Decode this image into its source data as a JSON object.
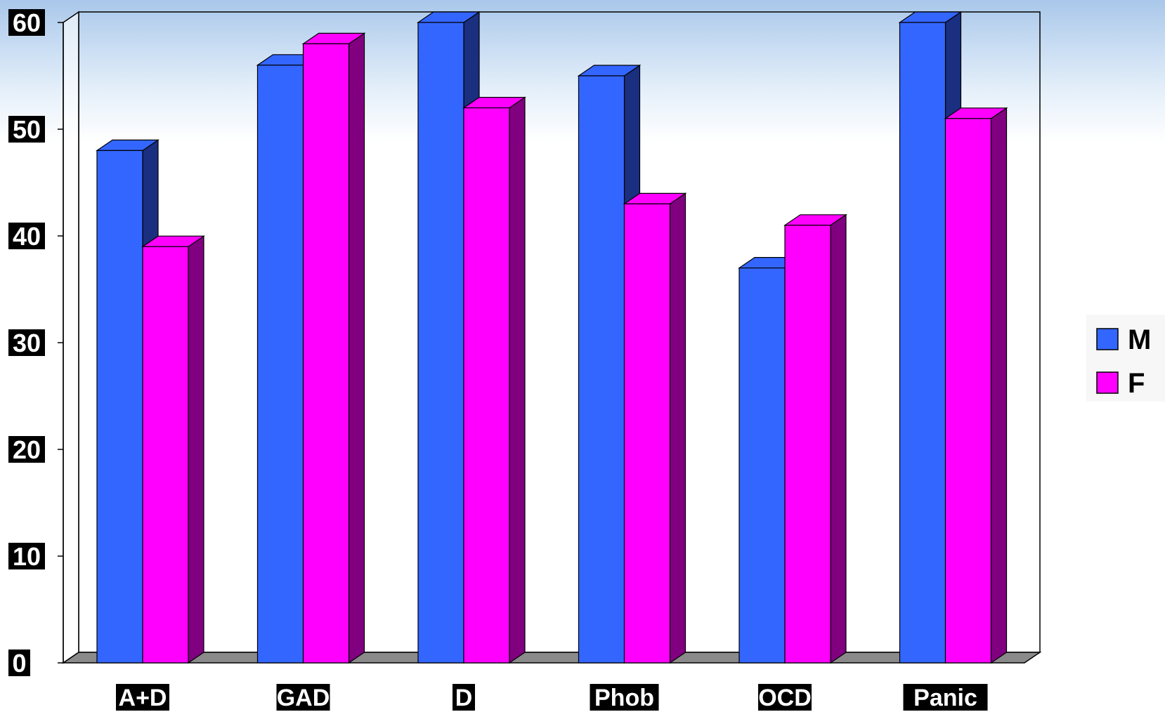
{
  "chart_data": {
    "type": "bar",
    "style": "3d-clustered-column",
    "categories": [
      "A+D",
      "GAD",
      "D",
      "Phob",
      "OCD",
      "Panic"
    ],
    "series": [
      {
        "name": "M",
        "values": [
          48,
          56,
          60,
          55,
          37,
          60
        ],
        "color": "#3366ff",
        "side_color": "#1a2f80"
      },
      {
        "name": "F",
        "values": [
          39,
          58,
          52,
          43,
          41,
          51
        ],
        "color": "#ff00ff",
        "side_color": "#800080"
      }
    ],
    "yticks": [
      "0",
      "10",
      "20",
      "30",
      "40",
      "50",
      "60"
    ],
    "ylim": [
      0,
      60
    ],
    "grid": false,
    "legend_position": "right",
    "title": "",
    "xlabel": "",
    "ylabel": ""
  }
}
